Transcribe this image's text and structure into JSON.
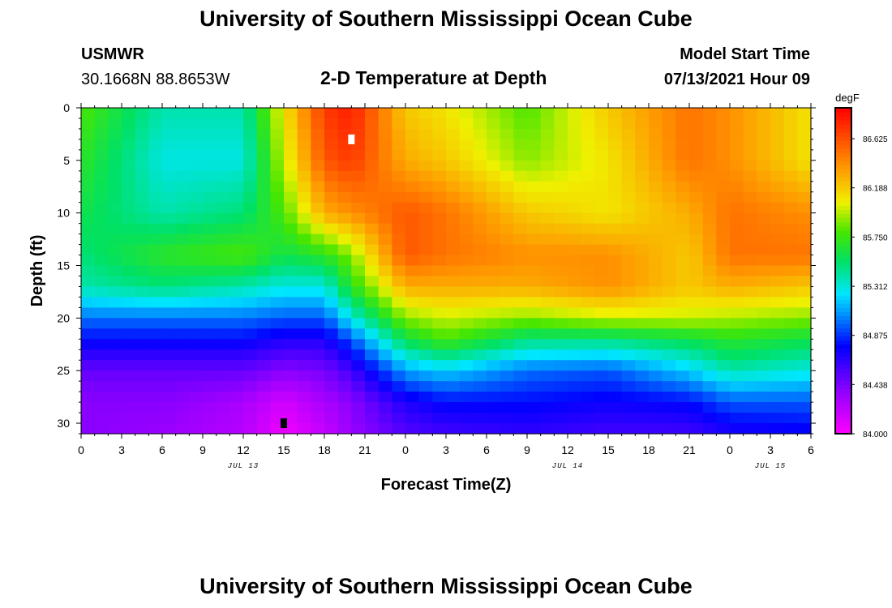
{
  "header": {
    "title_top": "University of Southern Mississippi Ocean Cube",
    "title_bottom": "University of Southern Mississippi Ocean Cube",
    "station_name": "USMWR",
    "station_coords": "30.1668N  88.8653W",
    "plot_title": "2-D Temperature at Depth",
    "model_label": "Model Start Time",
    "model_time": "07/13/2021 Hour 09"
  },
  "chart_data": {
    "type": "heatmap",
    "title": "2-D Temperature at Depth",
    "xlabel": "Forecast Time(Z)",
    "ylabel": "Depth (ft)",
    "xlim": [
      0,
      54
    ],
    "ylim": [
      31,
      0
    ],
    "x_ticks": [
      0,
      3,
      6,
      9,
      12,
      15,
      18,
      21,
      24,
      27,
      30,
      33,
      36,
      39,
      42,
      45,
      48,
      51,
      54
    ],
    "x_tick_labels": [
      "0",
      "3",
      "6",
      "9",
      "12",
      "15",
      "18",
      "21",
      "0",
      "3",
      "6",
      "9",
      "12",
      "15",
      "18",
      "21",
      "0",
      "3",
      "6"
    ],
    "y_ticks": [
      0,
      5,
      10,
      15,
      20,
      25,
      30
    ],
    "y_tick_labels": [
      "0",
      "5",
      "10",
      "15",
      "20",
      "25",
      "30"
    ],
    "date_labels": [
      {
        "x": 12,
        "label": "JUL 13"
      },
      {
        "x": 36,
        "label": "JUL 14"
      },
      {
        "x": 51,
        "label": "JUL 15"
      }
    ],
    "colorbar": {
      "unit": "degF",
      "min": 84.0,
      "max": 86.9,
      "tick_values": [
        84.0,
        84.438,
        84.875,
        85.312,
        85.75,
        86.188,
        86.625
      ],
      "tick_labels": [
        "84.000",
        "84.438",
        "84.875",
        "85.312",
        "85.750",
        "86.188",
        "86.625"
      ]
    },
    "markers": [
      {
        "type": "max",
        "x": 20,
        "depth": 3,
        "color": "#ffffff"
      },
      {
        "type": "min",
        "x": 15,
        "depth": 30,
        "color": "#000000"
      }
    ],
    "times": [
      0,
      6,
      12,
      15,
      18,
      20,
      24,
      27,
      33,
      39,
      45,
      48,
      54
    ],
    "depths": [
      0,
      5,
      10,
      14,
      17,
      20,
      22,
      25,
      28,
      31
    ],
    "values": [
      [
        85.8,
        85.4,
        85.4,
        86.1,
        86.7,
        86.8,
        86.2,
        86.1,
        85.8,
        86.2,
        86.5,
        86.4,
        86.1
      ],
      [
        85.7,
        85.3,
        85.3,
        86.0,
        86.6,
        86.7,
        86.3,
        86.2,
        85.9,
        86.1,
        86.5,
        86.4,
        86.1
      ],
      [
        85.6,
        85.4,
        85.5,
        85.8,
        86.3,
        86.4,
        86.6,
        86.5,
        86.2,
        86.1,
        86.3,
        86.5,
        86.4
      ],
      [
        85.5,
        85.7,
        85.8,
        85.6,
        85.7,
        85.9,
        86.6,
        86.5,
        86.4,
        86.4,
        86.2,
        86.5,
        86.5
      ],
      [
        85.4,
        85.5,
        85.4,
        85.3,
        85.3,
        85.7,
        86.3,
        86.3,
        86.3,
        86.4,
        86.2,
        86.3,
        86.2
      ],
      [
        85.0,
        85.0,
        85.0,
        84.95,
        84.95,
        85.3,
        85.9,
        86.0,
        85.9,
        86.0,
        86.0,
        85.95,
        85.9
      ],
      [
        84.8,
        84.8,
        84.8,
        84.7,
        84.7,
        84.95,
        85.6,
        85.8,
        85.5,
        85.5,
        85.6,
        85.7,
        85.6
      ],
      [
        84.5,
        84.5,
        84.5,
        84.4,
        84.45,
        84.6,
        85.1,
        85.2,
        85.0,
        84.95,
        85.2,
        85.4,
        85.3
      ],
      [
        84.4,
        84.4,
        84.3,
        84.15,
        84.3,
        84.4,
        84.7,
        84.8,
        84.8,
        84.75,
        84.8,
        84.95,
        84.95
      ],
      [
        84.4,
        84.35,
        84.25,
        84.05,
        84.2,
        84.35,
        84.55,
        84.6,
        84.65,
        84.6,
        84.6,
        84.7,
        84.75
      ]
    ]
  }
}
